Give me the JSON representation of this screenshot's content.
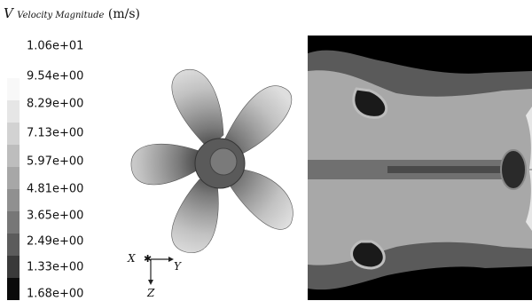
{
  "legend": {
    "symbol": "V",
    "quantity": "Velocity Magnitude",
    "unit": "(m/s)",
    "levels": [
      "1.06e+01",
      "9.54e+00",
      "8.29e+00",
      "7.13e+00",
      "5.97e+00",
      "4.81e+00",
      "3.65e+00",
      "2.49e+00",
      "1.33e+00",
      "1.68e+00"
    ]
  },
  "colors": {
    "scale": [
      "#f8f8f8",
      "#e6e6e6",
      "#d2d2d2",
      "#bdbdbd",
      "#a7a7a7",
      "#909090",
      "#777777",
      "#5c5c5c",
      "#3a3a3a",
      "#0a0a0a"
    ],
    "background": "#ffffff",
    "flow_background": "#000000"
  },
  "axes": {
    "x": "X",
    "y": "Y",
    "z": "Z"
  }
}
